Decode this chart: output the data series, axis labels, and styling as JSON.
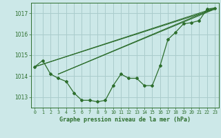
{
  "title": "Graphe pression niveau de la mer (hPa)",
  "background_color": "#cce8e8",
  "grid_color": "#aacccc",
  "line_color": "#2d6e2d",
  "xlim": [
    -0.5,
    23.5
  ],
  "ylim": [
    1012.5,
    1017.5
  ],
  "yticks": [
    1013,
    1014,
    1015,
    1016,
    1017
  ],
  "xticks": [
    0,
    1,
    2,
    3,
    4,
    5,
    6,
    7,
    8,
    9,
    10,
    11,
    12,
    13,
    14,
    15,
    16,
    17,
    18,
    19,
    20,
    21,
    22,
    23
  ],
  "trend_lines": [
    {
      "x": [
        0,
        23
      ],
      "y": [
        1014.45,
        1017.2
      ]
    },
    {
      "x": [
        0,
        23
      ],
      "y": [
        1014.45,
        1017.25
      ]
    },
    {
      "x": [
        3,
        23
      ],
      "y": [
        1014.1,
        1017.2
      ]
    },
    {
      "x": [
        3,
        23
      ],
      "y": [
        1014.1,
        1017.25
      ]
    }
  ],
  "main_series_x": [
    0,
    1,
    2,
    3,
    4,
    5,
    6,
    7,
    8,
    9,
    10,
    11,
    12,
    13,
    14,
    15,
    16,
    17,
    18,
    19,
    20,
    21,
    22,
    23
  ],
  "main_series_y": [
    1014.45,
    1014.75,
    1014.1,
    1013.9,
    1013.75,
    1013.2,
    1012.85,
    1012.85,
    1012.78,
    1012.85,
    1013.55,
    1014.1,
    1013.9,
    1013.9,
    1013.55,
    1013.55,
    1014.5,
    1015.75,
    1016.1,
    1016.5,
    1016.55,
    1016.65,
    1017.2,
    1017.25
  ]
}
